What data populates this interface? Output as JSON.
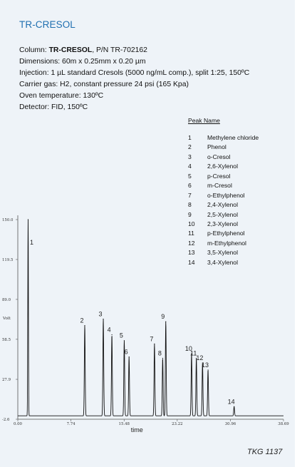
{
  "header": {
    "title": "TR-CRESOL"
  },
  "specs": {
    "column_prefix": "Column: ",
    "column_name": "TR-CRESOL",
    "column_suffix": ", P/N TR-702162",
    "dimensions": "Dimensions: 60m x 0.25mm x 0.20 µm",
    "injection": "Injection: 1 µL standard Cresols (5000 ng/mL comp.), split 1:25, 150ºC",
    "carrier_gas": "Carrier gas: H2, constant pressure 24 psi (165 Kpa)",
    "oven": "Oven temperature: 130ºC",
    "detector": "Detector: FID, 150ºC"
  },
  "legend": {
    "header": "Peak Name",
    "items": [
      {
        "num": "1",
        "name": "Methylene chloride"
      },
      {
        "num": "2",
        "name": "Phenol"
      },
      {
        "num": "3",
        "name": "o-Cresol"
      },
      {
        "num": "4",
        "name": "2,6-Xylenol"
      },
      {
        "num": "5",
        "name": "p-Cresol"
      },
      {
        "num": "6",
        "name": "m-Cresol"
      },
      {
        "num": "7",
        "name": "o-Ethylphenol"
      },
      {
        "num": "8",
        "name": "2,4-Xylenol"
      },
      {
        "num": "9",
        "name": "2,5-Xylenol"
      },
      {
        "num": "10",
        "name": "2,3-Xylenol"
      },
      {
        "num": "11",
        "name": "p-Ethylphenol"
      },
      {
        "num": "12",
        "name": "m-Ethylphenol"
      },
      {
        "num": "13",
        "name": "3,5-Xylenol"
      },
      {
        "num": "14",
        "name": "3,4-Xylenol"
      }
    ]
  },
  "chart_data": {
    "type": "line",
    "xlabel": "time",
    "ylabel": "Volt",
    "xlim": [
      0.0,
      38.69
    ],
    "ylim": [
      -2.6,
      150.0
    ],
    "x_ticks": [
      "0.00",
      "7.74",
      "15.48",
      "23.22",
      "30.96",
      "38.69"
    ],
    "y_ticks": [
      "150.0",
      "119.5",
      "89.0",
      "58.5",
      "27.9",
      "-2.6"
    ],
    "y_tick_values": [
      150.0,
      119.5,
      89.0,
      58.5,
      27.9,
      -2.6
    ],
    "x_tick_values": [
      0.0,
      7.74,
      15.48,
      23.22,
      30.96,
      38.69
    ],
    "peaks": [
      {
        "label": "1",
        "time": 1.5,
        "height": 150.0
      },
      {
        "label": "2",
        "time": 9.75,
        "height": 69.0
      },
      {
        "label": "3",
        "time": 12.45,
        "height": 74.0
      },
      {
        "label": "4",
        "time": 13.7,
        "height": 62.0
      },
      {
        "label": "5",
        "time": 15.5,
        "height": 57.5
      },
      {
        "label": "6",
        "time": 16.2,
        "height": 45.0
      },
      {
        "label": "7",
        "time": 19.9,
        "height": 55.0
      },
      {
        "label": "8",
        "time": 21.1,
        "height": 44.0
      },
      {
        "label": "9",
        "time": 21.55,
        "height": 72.0
      },
      {
        "label": "10",
        "time": 25.3,
        "height": 47.5
      },
      {
        "label": "11",
        "time": 26.0,
        "height": 44.0
      },
      {
        "label": "12",
        "time": 26.9,
        "height": 40.5
      },
      {
        "label": "13",
        "time": 27.7,
        "height": 35.0
      },
      {
        "label": "14",
        "time": 31.5,
        "height": 7.0
      }
    ]
  },
  "footer": {
    "code": "TKG 1137"
  }
}
